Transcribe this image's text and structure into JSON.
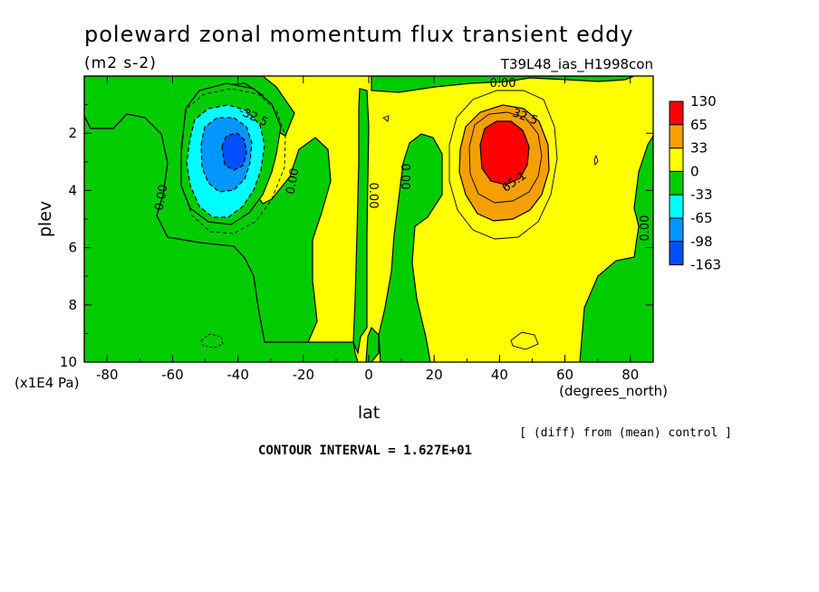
{
  "chart_data": {
    "type": "contour",
    "title": "poleward zonal momentum flux transient eddy",
    "units": "(m2 s-2)",
    "run_label": "T39L48_ias_H1998con",
    "xlabel": "lat",
    "xunits": "(degrees_north)",
    "ylabel": "plev",
    "yunits": "(x1E4 Pa)",
    "xlim": [
      -87,
      87
    ],
    "ylim": [
      10,
      0
    ],
    "x_ticks": [
      -80,
      -60,
      -40,
      -20,
      0,
      20,
      40,
      60,
      80
    ],
    "y_ticks": [
      2,
      4,
      6,
      8,
      10
    ],
    "colorbar": {
      "labels": [
        "130",
        "65",
        "33",
        "0",
        "-33",
        "-65",
        "-98",
        "-163"
      ],
      "colors": [
        "#ff0000",
        "#f5a000",
        "#ffff00",
        "#00cc00",
        "#00ffff",
        "#0096ff",
        "#0050ff"
      ]
    },
    "contour_labels": [
      "-32.5",
      "0.00",
      "0.00",
      "0.00",
      "0.00",
      "0.00",
      "0.00",
      "32.5",
      "65.1"
    ],
    "features": [
      {
        "name": "southern-minimum",
        "lat": -41,
        "plev": 2.6,
        "value": -120
      },
      {
        "name": "northern-maximum",
        "lat": 42,
        "plev": 2.8,
        "value": 125
      }
    ],
    "contour_interval": "CONTOUR INTERVAL = 1.627E+01",
    "note": "[ (diff) from (mean) control ]"
  }
}
